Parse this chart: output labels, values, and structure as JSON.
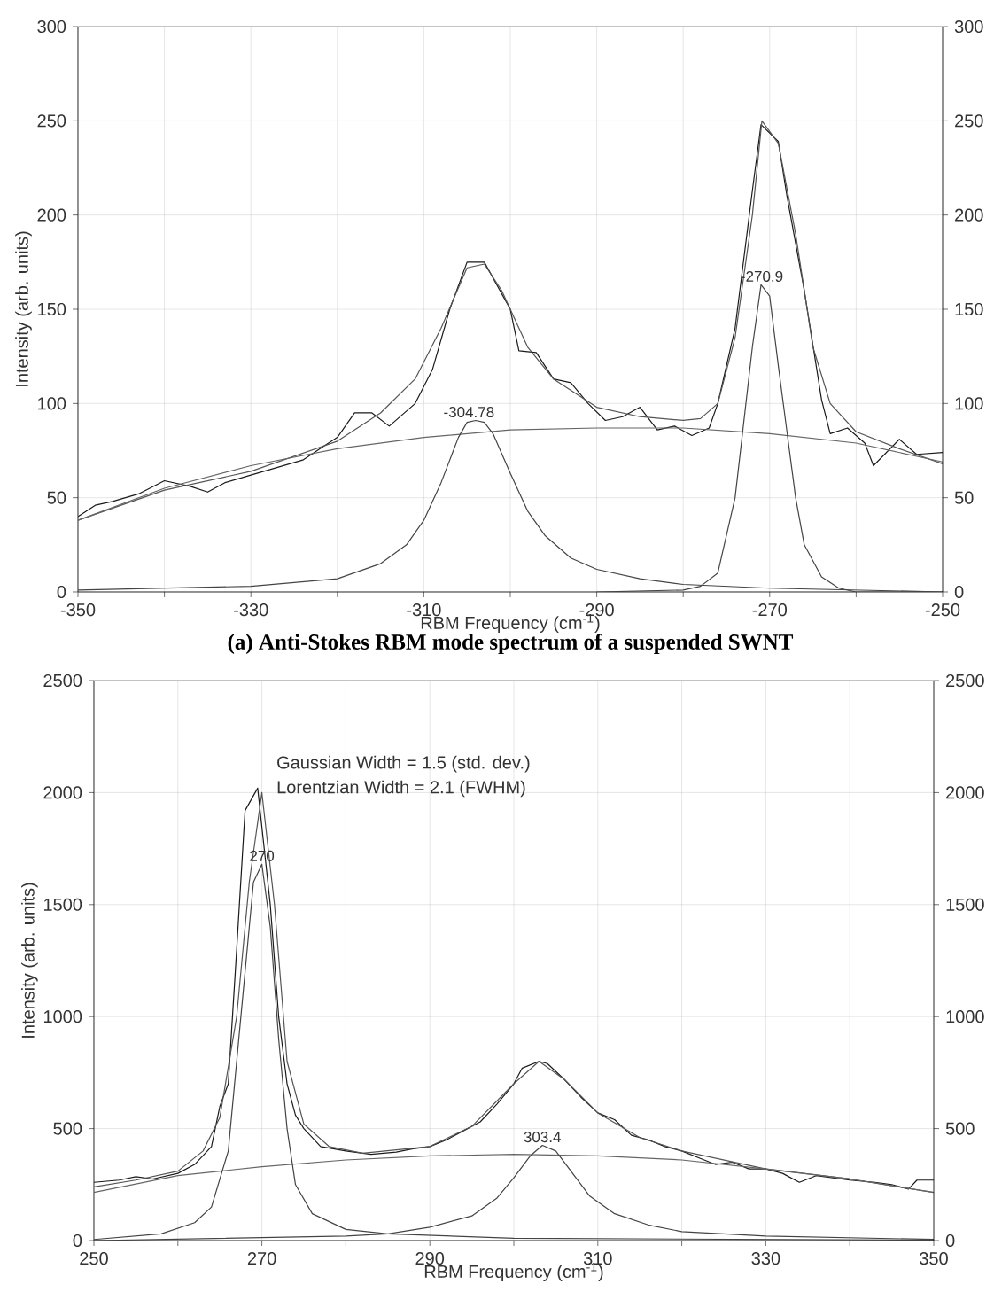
{
  "chart_data": [
    {
      "type": "line",
      "title": "(a) Anti-Stokes RBM mode spectrum of a suspended SWNT",
      "xlabel": "RBM Frequency (cm$^{-1}$)",
      "ylabel": "Intensity (arb. units)",
      "xlim": [
        -350,
        -250
      ],
      "xticks": [
        -350,
        {
          "value": -340,
          "label": null
        },
        -330,
        {
          "value": -320,
          "label": null
        },
        -310,
        {
          "value": -300,
          "label": null
        },
        -290,
        {
          "value": -280,
          "label": null
        },
        -270,
        {
          "value": -260,
          "label": null
        },
        -250
      ],
      "ylim": [
        0,
        300
      ],
      "yticks": [
        0,
        50,
        100,
        150,
        200,
        250,
        300
      ],
      "y2lim": [
        0,
        300
      ],
      "y2ticks": [
        0,
        50,
        100,
        150,
        200,
        250,
        300
      ],
      "grid": true,
      "series": [
        {
          "color": "#1a1a1a",
          "x": [
            -350,
            -348,
            -346,
            -343,
            -340,
            -337,
            -335,
            -333,
            -330,
            -327,
            -324,
            -322,
            -320,
            -318,
            -316,
            -314,
            -311,
            -309,
            -307,
            -305,
            -303,
            -300,
            -299,
            -297,
            -295,
            -293,
            -291,
            -289,
            -287,
            -285,
            -283,
            -281,
            -279,
            -277,
            -276,
            -274,
            -272,
            -271,
            -269,
            -268,
            -266,
            -264,
            -263,
            -261,
            -259,
            -258,
            -255,
            -253,
            -250
          ],
          "values": [
            40,
            46,
            48,
            52,
            59,
            56,
            53,
            58,
            62,
            66,
            70,
            76,
            82,
            95,
            95,
            88,
            100,
            118,
            150,
            175,
            175,
            150,
            128,
            127,
            113,
            111,
            100,
            91,
            93,
            98,
            86,
            88,
            83,
            87,
            100,
            140,
            213,
            248,
            239,
            210,
            160,
            102,
            84,
            87,
            79,
            67,
            81,
            73,
            74
          ]
        },
        {
          "color": "#555555",
          "x": [
            -350,
            -340,
            -330,
            -320,
            -315,
            -311,
            -308,
            -305,
            -303,
            -301,
            -298,
            -295,
            -290,
            -285,
            -280,
            -278,
            -276,
            -274,
            -272,
            -270.9,
            -269,
            -267,
            -265,
            -263,
            -260,
            -255,
            -250
          ],
          "values": [
            38,
            54,
            64,
            80,
            95,
            113,
            140,
            172,
            174,
            160,
            130,
            113,
            98,
            93,
            91,
            92,
            100,
            135,
            200,
            250,
            238,
            190,
            130,
            100,
            85,
            76,
            68
          ]
        },
        {
          "color": "#666666",
          "x": [
            -350,
            -340,
            -330,
            -320,
            -310,
            -300,
            -290,
            -280,
            -270,
            -260,
            -250
          ],
          "values": [
            38,
            55,
            67,
            76,
            82,
            86,
            87,
            87,
            84,
            79,
            69
          ]
        },
        {
          "color": "#444444",
          "x": [
            -350,
            -330,
            -320,
            -315,
            -312,
            -310,
            -308,
            -306,
            -305,
            -304,
            -303,
            -302,
            -300,
            -298,
            -296,
            -293,
            -290,
            -285,
            -280,
            -270,
            -250
          ],
          "values": [
            1,
            3,
            7,
            15,
            25,
            38,
            58,
            82,
            90,
            91,
            90,
            84,
            63,
            43,
            30,
            18,
            12,
            7,
            4,
            2,
            0
          ]
        },
        {
          "color": "#444444",
          "x": [
            -290,
            -280,
            -278,
            -276,
            -274,
            -273,
            -272,
            -271,
            -270,
            -269,
            -268,
            -267,
            -266,
            -264,
            -262,
            -260,
            -250
          ],
          "values": [
            0,
            1,
            3,
            10,
            50,
            90,
            130,
            163,
            157,
            120,
            85,
            50,
            25,
            8,
            2,
            0,
            0
          ]
        }
      ],
      "annotations": [
        {
          "text": "-304.78",
          "x": -304.78,
          "y": 91
        },
        {
          "text": "-270.9",
          "x": -270.9,
          "y": 163
        }
      ]
    },
    {
      "type": "line",
      "xlabel": "RBM Frequency (cm$^{-1}$)",
      "ylabel": "Intensity (arb. units)",
      "xlim": [
        250,
        350
      ],
      "xticks": [
        250,
        {
          "value": 260,
          "label": null
        },
        270,
        {
          "value": 280,
          "label": null
        },
        290,
        {
          "value": 300,
          "label": null
        },
        310,
        {
          "value": 320,
          "label": null
        },
        330,
        {
          "value": 340,
          "label": null
        },
        350
      ],
      "ylim": [
        0,
        2500
      ],
      "yticks": [
        0,
        500,
        1000,
        1500,
        2000,
        2500
      ],
      "y2lim": [
        0,
        2500
      ],
      "y2ticks": [
        0,
        500,
        1000,
        1500,
        2000,
        2500
      ],
      "grid": true,
      "series": [
        {
          "color": "#1a1a1a",
          "x": [
            250,
            253,
            255,
            257,
            260,
            262,
            264,
            265,
            266,
            267,
            268,
            269.5,
            271,
            272,
            273,
            274,
            275,
            277,
            280,
            283,
            286,
            288,
            290,
            292,
            294,
            296,
            298,
            300,
            301,
            303,
            304,
            306,
            308,
            310,
            312,
            314,
            316,
            318,
            320,
            322,
            324,
            326,
            328,
            330,
            332,
            334,
            336,
            338,
            340,
            343,
            345,
            347,
            348,
            350
          ],
          "values": [
            260,
            270,
            285,
            275,
            300,
            340,
            420,
            600,
            700,
            1300,
            1920,
            2020,
            1500,
            1000,
            700,
            560,
            500,
            420,
            400,
            385,
            395,
            410,
            420,
            450,
            490,
            530,
            610,
            700,
            770,
            800,
            790,
            720,
            640,
            570,
            540,
            470,
            450,
            420,
            400,
            370,
            340,
            350,
            320,
            320,
            300,
            260,
            290,
            280,
            270,
            260,
            250,
            230,
            270,
            270
          ]
        },
        {
          "color": "#555555",
          "x": [
            250,
            255,
            260,
            263,
            265,
            267,
            268.5,
            270,
            271.5,
            273,
            275,
            278,
            282,
            290,
            295,
            300,
            303,
            306,
            310,
            315,
            320,
            330,
            340,
            350
          ],
          "values": [
            240,
            270,
            310,
            400,
            550,
            1000,
            1600,
            2000,
            1500,
            800,
            520,
            420,
            390,
            420,
            510,
            700,
            800,
            720,
            570,
            460,
            400,
            320,
            275,
            215
          ]
        },
        {
          "color": "#666666",
          "x": [
            250,
            260,
            270,
            280,
            290,
            300,
            310,
            320,
            330,
            340,
            350
          ],
          "values": [
            215,
            290,
            330,
            360,
            378,
            385,
            378,
            360,
            320,
            275,
            215
          ]
        },
        {
          "color": "#444444",
          "x": [
            250,
            258,
            262,
            264,
            266,
            267,
            268,
            269,
            270,
            271,
            272,
            273,
            274,
            276,
            280,
            285,
            300,
            350
          ],
          "values": [
            5,
            30,
            80,
            150,
            400,
            800,
            1200,
            1600,
            1680,
            1400,
            900,
            500,
            250,
            120,
            50,
            30,
            10,
            2
          ]
        },
        {
          "color": "#444444",
          "x": [
            250,
            280,
            285,
            290,
            295,
            298,
            300,
            302,
            303.4,
            305,
            307,
            309,
            312,
            316,
            320,
            330,
            350
          ],
          "values": [
            0,
            20,
            30,
            60,
            110,
            190,
            280,
            380,
            425,
            400,
            300,
            200,
            120,
            70,
            40,
            20,
            5
          ]
        }
      ],
      "annotations": [
        "Gaussian Width = 1.5 (std. dev.)",
        "Lorentzian Width = 2.1 (FWHM)",
        {
          "text": "270",
          "x": 270,
          "y": 1680
        },
        {
          "text": "303.4",
          "x": 303.4,
          "y": 425
        }
      ]
    }
  ]
}
